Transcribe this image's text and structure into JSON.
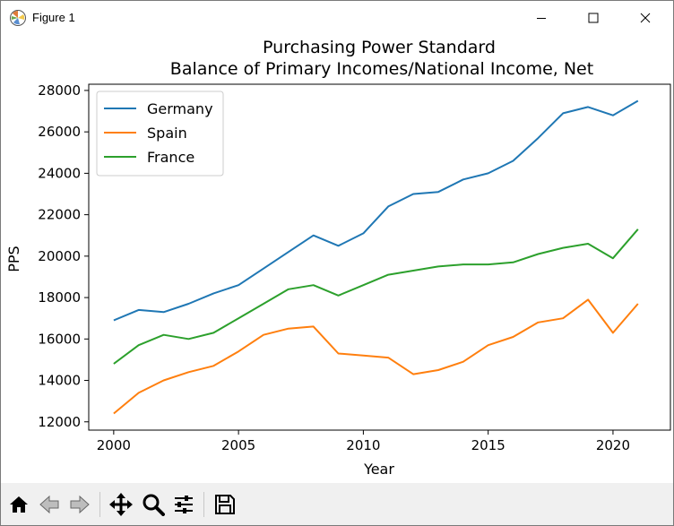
{
  "window": {
    "title": "Figure 1",
    "controls": {
      "minimize": "minimize-icon",
      "maximize": "maximize-icon",
      "close": "close-icon"
    }
  },
  "toolbar": {
    "buttons": [
      {
        "name": "home-button",
        "icon": "home-icon"
      },
      {
        "name": "back-button",
        "icon": "back-arrow-icon"
      },
      {
        "name": "forward-button",
        "icon": "forward-arrow-icon"
      },
      {
        "name": "pan-button",
        "icon": "pan-arrows-icon"
      },
      {
        "name": "zoom-button",
        "icon": "magnifier-icon"
      },
      {
        "name": "configure-subplots-button",
        "icon": "sliders-icon"
      },
      {
        "name": "save-button",
        "icon": "floppy-disk-icon"
      }
    ]
  },
  "chart_data": {
    "type": "line",
    "title": "Purchasing Power Standard",
    "subtitle": "Balance of Primary Incomes/National Income, Net",
    "xlabel": "Year",
    "ylabel": "PPS",
    "xlim": [
      1999,
      2022.3
    ],
    "ylim": [
      11600,
      28300
    ],
    "xticks": [
      2000,
      2005,
      2010,
      2015,
      2020
    ],
    "yticks": [
      12000,
      14000,
      16000,
      18000,
      20000,
      22000,
      24000,
      26000,
      28000
    ],
    "grid": false,
    "legend_position": "upper-left",
    "x": [
      2000,
      2001,
      2002,
      2003,
      2004,
      2005,
      2006,
      2007,
      2008,
      2009,
      2010,
      2011,
      2012,
      2013,
      2014,
      2015,
      2016,
      2017,
      2018,
      2019,
      2020,
      2021
    ],
    "series": [
      {
        "name": "Germany",
        "color": "#1f77b4",
        "values": [
          16900,
          17400,
          17300,
          17700,
          18200,
          18600,
          19400,
          20200,
          21000,
          20500,
          21100,
          22400,
          23000,
          23100,
          23700,
          24000,
          24600,
          25700,
          26900,
          27200,
          26800,
          27500
        ]
      },
      {
        "name": "Spain",
        "color": "#ff7f0e",
        "values": [
          12400,
          13400,
          14000,
          14400,
          14700,
          15400,
          16200,
          16500,
          16600,
          15300,
          15200,
          15100,
          14300,
          14500,
          14900,
          15700,
          16100,
          16800,
          17000,
          17900,
          16300,
          17700
        ]
      },
      {
        "name": "France",
        "color": "#2ca02c",
        "values": [
          14800,
          15700,
          16200,
          16000,
          16300,
          17000,
          17700,
          18400,
          18600,
          18100,
          18600,
          19100,
          19300,
          19500,
          19600,
          19600,
          19700,
          20100,
          20400,
          20600,
          19900,
          21300
        ]
      }
    ]
  }
}
